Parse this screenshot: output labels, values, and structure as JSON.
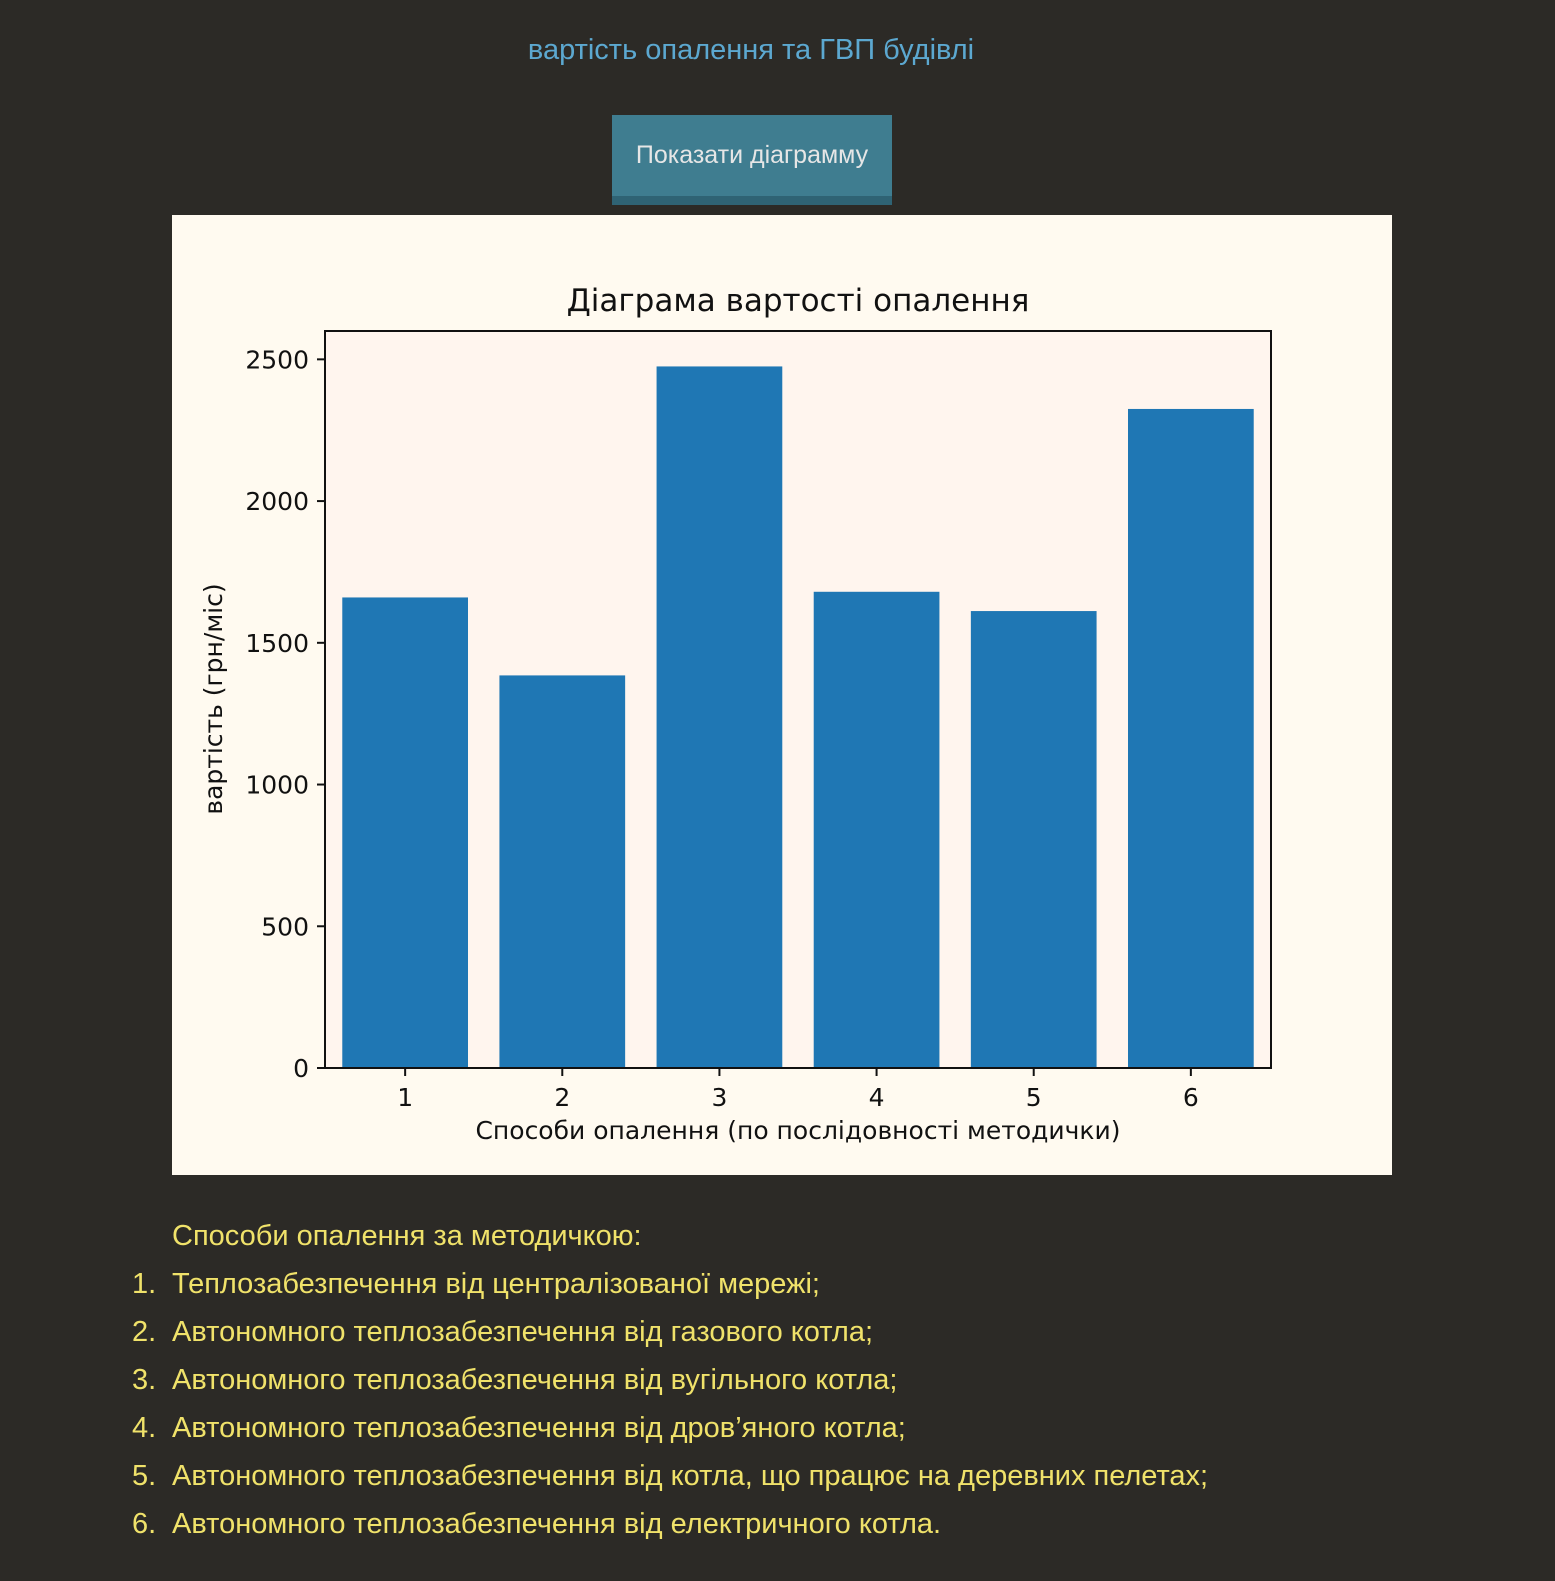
{
  "header": {
    "title": "вартість опалення та ГВП будівлі"
  },
  "toolbar": {
    "show_chart_label": "Показати діаграмму"
  },
  "chart_data": {
    "type": "bar",
    "title": "Діаграма вартості опалення",
    "xlabel": "Способи опалення (по послідовності методички)",
    "ylabel": "вартість (грн/міс)",
    "categories": [
      "1",
      "2",
      "3",
      "4",
      "5",
      "6"
    ],
    "values": [
      1660,
      1385,
      2475,
      1680,
      1612,
      2325
    ],
    "ylim": [
      0,
      2600
    ],
    "yticks": [
      0,
      500,
      1000,
      1500,
      2000,
      2500
    ],
    "bar_color": "#1f77b4",
    "grid": false
  },
  "methods": {
    "heading": "Способи опалення за методичкою:",
    "items": [
      {
        "num": "1.",
        "text": "Теплозабезпечення від централізованої мережі;"
      },
      {
        "num": "2.",
        "text": "Автономного теплозабезпечення від газового котла;"
      },
      {
        "num": "3.",
        "text": "Автономного теплозабезпечення від вугільного котла;"
      },
      {
        "num": "4.",
        "text": "Автономного теплозабезпечення від дров’яного котла;"
      },
      {
        "num": "5.",
        "text": "Автономного теплозабезпечення від котла, що працює на деревних пелетах;"
      },
      {
        "num": "6.",
        "text": "Автономного теплозабезпечення від електричного котла."
      }
    ]
  }
}
